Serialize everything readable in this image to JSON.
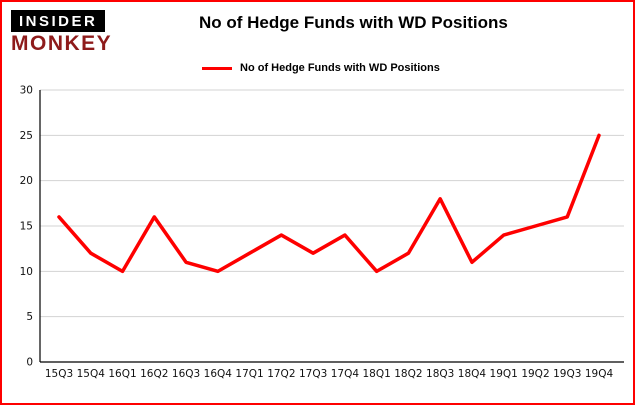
{
  "brand": {
    "line1": "INSIDER",
    "line2": "MONKEY"
  },
  "header": {
    "title": "No of Hedge Funds with WD Positions"
  },
  "legend": {
    "label": "No of Hedge Funds with WD Positions"
  },
  "colors": {
    "line": "#fe0000",
    "border": "#fe0000",
    "grid": "#d3d3d3",
    "axis": "#000000",
    "logo_bg": "#000000",
    "logo_monkey": "#8e1b1b"
  },
  "chart_data": {
    "type": "line",
    "categories": [
      "15Q3",
      "15Q4",
      "16Q1",
      "16Q2",
      "16Q3",
      "16Q4",
      "17Q1",
      "17Q2",
      "17Q3",
      "17Q4",
      "18Q1",
      "18Q2",
      "18Q3",
      "18Q4",
      "19Q1",
      "19Q2",
      "19Q3",
      "19Q4"
    ],
    "values": [
      16,
      12,
      10,
      16,
      11,
      10,
      12,
      14,
      12,
      14,
      10,
      12,
      18,
      11,
      14,
      15,
      16,
      25
    ],
    "series": [
      {
        "name": "No of Hedge Funds with WD Positions",
        "values": [
          16,
          12,
          10,
          16,
          11,
          10,
          12,
          14,
          12,
          14,
          10,
          12,
          18,
          11,
          14,
          15,
          16,
          25
        ]
      }
    ],
    "title": "No of Hedge Funds with WD Positions",
    "xlabel": "",
    "ylabel": "",
    "ylim": [
      0,
      30
    ],
    "yticks": [
      0,
      5,
      10,
      15,
      20,
      25,
      30
    ],
    "grid": true,
    "legend_position": "top-left"
  }
}
